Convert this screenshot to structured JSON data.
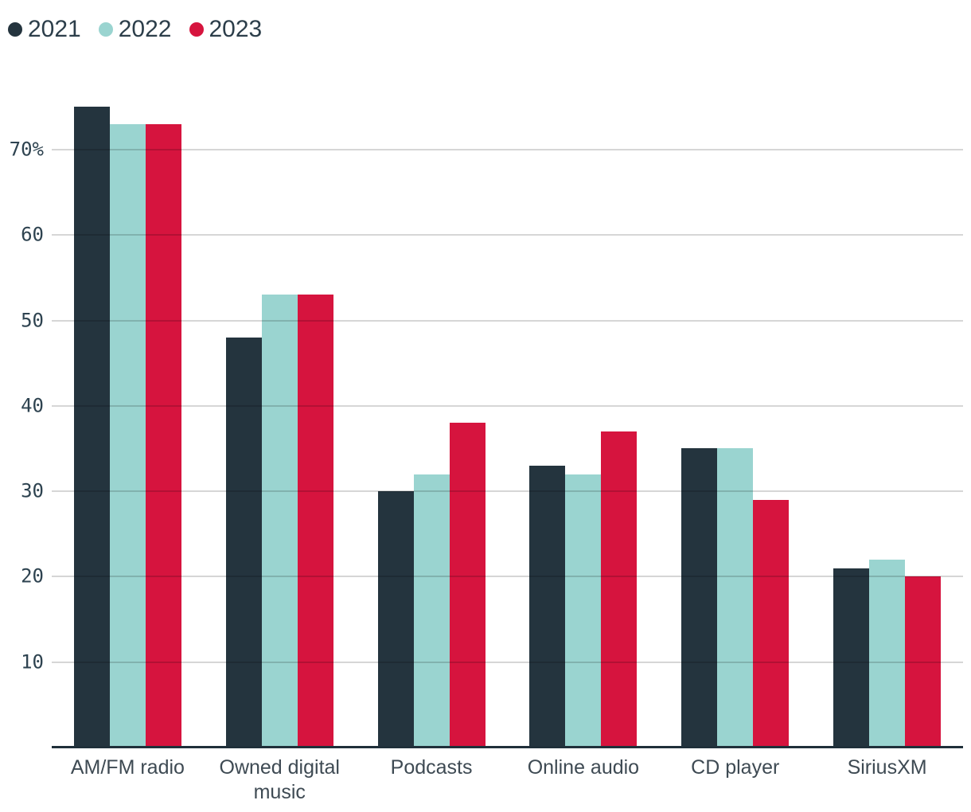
{
  "chart_data": {
    "type": "bar",
    "categories": [
      "AM/FM radio",
      "Owned digital music",
      "Podcasts",
      "Online audio",
      "CD player",
      "SiriusXM"
    ],
    "series": [
      {
        "name": "2021",
        "color": "#24343E",
        "values": [
          75,
          48,
          30,
          33,
          35,
          21
        ]
      },
      {
        "name": "2022",
        "color": "#9AD4D0",
        "values": [
          73,
          53,
          32,
          32,
          35,
          22
        ]
      },
      {
        "name": "2023",
        "color": "#D6143E",
        "values": [
          73,
          53,
          38,
          37,
          29,
          20
        ]
      }
    ],
    "yticks": [
      {
        "value": 10,
        "label": "10"
      },
      {
        "value": 20,
        "label": "20"
      },
      {
        "value": 30,
        "label": "30"
      },
      {
        "value": 40,
        "label": "40"
      },
      {
        "value": 50,
        "label": "50"
      },
      {
        "value": 60,
        "label": "60"
      },
      {
        "value": 70,
        "label": "70%"
      }
    ],
    "ylim": [
      0,
      78
    ],
    "value_unit": "percent",
    "grid": "horizontal",
    "legend_position": "top-left"
  },
  "colors": {
    "background": "#FFFFFF",
    "gridline": "#D6D6D6",
    "axis_line": "#20303A",
    "tick_text": "#2E4350",
    "category_text": "#3E4A53",
    "legend_text": "#2C3E4A"
  }
}
